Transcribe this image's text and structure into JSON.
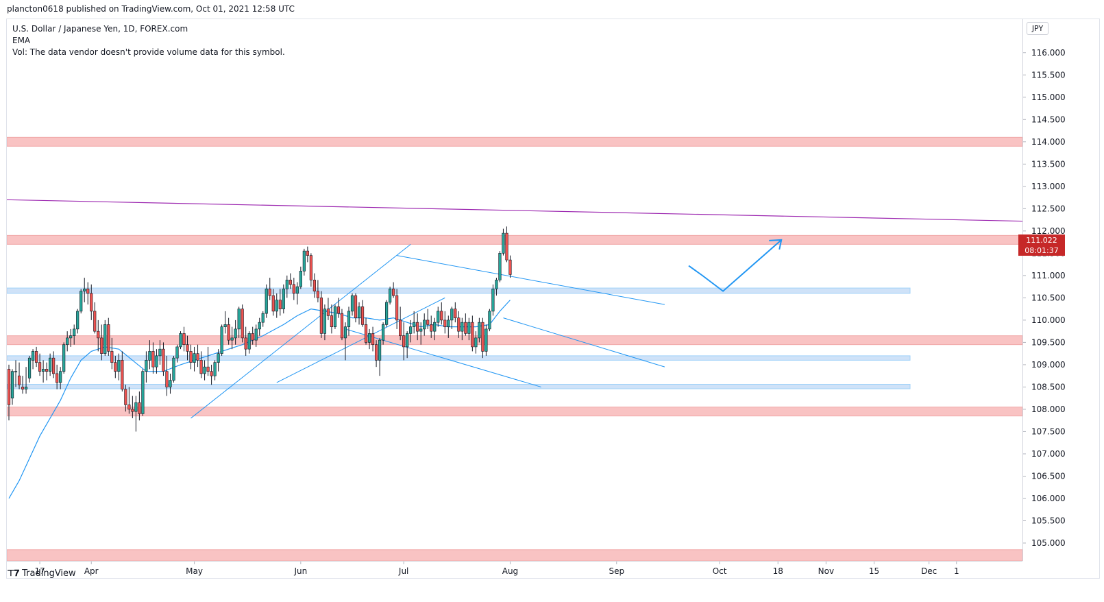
{
  "header": {
    "published": "plancton0618 published on TradingView.com, Oct 01, 2021 12:58 UTC"
  },
  "legend": {
    "symbol": "U.S. Dollar / Japanese Yen, 1D, FOREX.com",
    "indicator": "EMA",
    "volume_note": "Vol: The data vendor doesn't provide volume data for this symbol."
  },
  "currency_badge": "JPY",
  "last_price": {
    "value": "111.022",
    "countdown": "08:01:37"
  },
  "footer": {
    "brand": "TradingView"
  },
  "colors": {
    "up": "#26a69a",
    "down": "#ef5350",
    "ema": "#2196f3",
    "trend": "#2196f3",
    "resistance": "#9c27b0",
    "red_zone": "#f8b9b9",
    "blue_zone": "#c7ddf7"
  },
  "chart_data": {
    "type": "candlestick",
    "symbol": "USDJPY",
    "timeframe": "1D",
    "ylim": [
      104.6,
      116.75
    ],
    "price_ticks": [
      "116.000",
      "115.500",
      "115.000",
      "114.500",
      "114.000",
      "113.500",
      "113.000",
      "112.500",
      "112.000",
      "111.500",
      "111.000",
      "110.500",
      "110.000",
      "109.500",
      "109.000",
      "108.500",
      "108.000",
      "107.500",
      "107.000",
      "106.500",
      "106.000",
      "105.500",
      "105.000"
    ],
    "time_labels": [
      {
        "label": "17",
        "day": 9
      },
      {
        "label": "Apr",
        "day": 24
      },
      {
        "label": "May",
        "day": 54
      },
      {
        "label": "Jun",
        "day": 85
      },
      {
        "label": "Jul",
        "day": 115
      },
      {
        "label": "Aug",
        "day": 146
      },
      {
        "label": "Sep",
        "day": 177
      },
      {
        "label": "Oct",
        "day": 207
      },
      {
        "label": "18",
        "day": 224
      },
      {
        "label": "Nov",
        "day": 238
      },
      {
        "label": "15",
        "day": 252
      },
      {
        "label": "Dec",
        "day": 268
      },
      {
        "label": "1",
        "day": 276
      }
    ],
    "ohlc_daily": [
      [
        108.9,
        109.0,
        107.75,
        108.1
      ],
      [
        108.25,
        108.9,
        108.1,
        108.85
      ],
      [
        108.85,
        109.1,
        108.5,
        108.85
      ],
      [
        108.75,
        109.05,
        108.45,
        108.55
      ],
      [
        108.5,
        108.75,
        108.35,
        108.45
      ],
      [
        108.45,
        108.95,
        108.35,
        108.5
      ],
      [
        108.7,
        109.2,
        108.6,
        109.15
      ],
      [
        109.1,
        109.35,
        108.9,
        109.3
      ],
      [
        109.3,
        109.4,
        108.95,
        109.05
      ],
      [
        109.05,
        109.25,
        108.75,
        108.85
      ],
      [
        108.85,
        109.1,
        108.6,
        108.9
      ],
      [
        108.9,
        109.05,
        108.65,
        108.85
      ],
      [
        108.85,
        109.25,
        108.75,
        109.15
      ],
      [
        109.15,
        109.3,
        108.7,
        108.8
      ],
      [
        108.8,
        109.0,
        108.45,
        108.6
      ],
      [
        108.6,
        108.95,
        108.45,
        108.85
      ],
      [
        108.85,
        109.5,
        108.8,
        109.45
      ],
      [
        109.45,
        109.75,
        109.3,
        109.6
      ],
      [
        109.6,
        109.8,
        109.4,
        109.65
      ],
      [
        109.65,
        109.9,
        109.45,
        109.8
      ],
      [
        109.8,
        110.25,
        109.7,
        110.2
      ],
      [
        110.2,
        110.7,
        110.15,
        110.65
      ],
      [
        110.65,
        110.95,
        110.4,
        110.7
      ],
      [
        110.7,
        110.85,
        110.35,
        110.6
      ],
      [
        110.6,
        110.8,
        110.0,
        110.2
      ],
      [
        110.2,
        110.4,
        109.7,
        109.75
      ],
      [
        109.75,
        110.0,
        109.3,
        109.6
      ],
      [
        109.6,
        109.9,
        109.1,
        109.25
      ],
      [
        109.25,
        110.0,
        109.2,
        109.9
      ],
      [
        109.9,
        110.05,
        109.2,
        109.3
      ],
      [
        109.3,
        109.6,
        108.9,
        109.05
      ],
      [
        109.05,
        109.2,
        108.7,
        108.85
      ],
      [
        108.85,
        109.25,
        108.65,
        109.1
      ],
      [
        109.1,
        109.3,
        108.4,
        108.45
      ],
      [
        108.45,
        108.55,
        107.95,
        108.1
      ],
      [
        108.1,
        108.5,
        107.9,
        108.0
      ],
      [
        108.0,
        108.3,
        107.8,
        107.95
      ],
      [
        107.95,
        108.3,
        107.5,
        108.15
      ],
      [
        108.15,
        108.4,
        107.75,
        107.9
      ],
      [
        107.9,
        108.9,
        107.85,
        108.85
      ],
      [
        108.85,
        109.3,
        108.6,
        109.1
      ],
      [
        109.1,
        109.55,
        108.9,
        109.3
      ],
      [
        109.3,
        109.5,
        108.8,
        108.95
      ],
      [
        108.95,
        109.35,
        108.8,
        109.2
      ],
      [
        109.2,
        109.55,
        109.0,
        109.35
      ],
      [
        109.35,
        109.5,
        108.75,
        108.85
      ],
      [
        108.85,
        109.2,
        108.3,
        108.5
      ],
      [
        108.5,
        108.8,
        108.35,
        108.65
      ],
      [
        108.65,
        109.2,
        108.6,
        109.15
      ],
      [
        109.15,
        109.45,
        109.05,
        109.4
      ],
      [
        109.4,
        109.75,
        109.35,
        109.7
      ],
      [
        109.7,
        109.85,
        109.3,
        109.45
      ],
      [
        109.45,
        109.65,
        109.1,
        109.3
      ],
      [
        109.3,
        109.45,
        108.9,
        109.05
      ],
      [
        109.05,
        109.4,
        108.85,
        109.25
      ],
      [
        109.25,
        109.45,
        108.95,
        109.1
      ],
      [
        109.1,
        109.3,
        108.7,
        108.8
      ],
      [
        108.8,
        109.1,
        108.65,
        108.95
      ],
      [
        108.95,
        109.4,
        108.75,
        108.85
      ],
      [
        108.85,
        109.0,
        108.55,
        108.75
      ],
      [
        108.75,
        109.1,
        108.65,
        109.05
      ],
      [
        109.05,
        109.35,
        108.85,
        109.25
      ],
      [
        109.25,
        109.9,
        109.2,
        109.85
      ],
      [
        109.85,
        110.2,
        109.7,
        109.9
      ],
      [
        109.9,
        110.05,
        109.45,
        109.55
      ],
      [
        109.55,
        109.85,
        109.35,
        109.6
      ],
      [
        109.6,
        110.0,
        109.45,
        109.8
      ],
      [
        109.8,
        110.3,
        109.6,
        110.25
      ],
      [
        110.25,
        110.35,
        109.5,
        109.6
      ],
      [
        109.6,
        109.85,
        109.2,
        109.35
      ],
      [
        109.35,
        109.75,
        109.25,
        109.7
      ],
      [
        109.7,
        109.85,
        109.45,
        109.55
      ],
      [
        109.55,
        109.9,
        109.4,
        109.8
      ],
      [
        109.8,
        110.05,
        109.65,
        109.95
      ],
      [
        109.95,
        110.2,
        109.85,
        110.15
      ],
      [
        110.15,
        110.8,
        110.05,
        110.7
      ],
      [
        110.7,
        110.95,
        110.45,
        110.55
      ],
      [
        110.55,
        110.7,
        110.1,
        110.2
      ],
      [
        110.2,
        110.6,
        110.05,
        110.45
      ],
      [
        110.45,
        110.7,
        110.1,
        110.25
      ],
      [
        110.25,
        110.8,
        110.15,
        110.7
      ],
      [
        110.7,
        111.0,
        110.5,
        110.9
      ],
      [
        110.9,
        111.05,
        110.7,
        110.8
      ],
      [
        110.8,
        110.95,
        110.45,
        110.6
      ],
      [
        110.6,
        110.85,
        110.35,
        110.75
      ],
      [
        110.75,
        111.2,
        110.7,
        111.1
      ],
      [
        111.1,
        111.6,
        111.0,
        111.55
      ],
      [
        111.55,
        111.65,
        111.3,
        111.45
      ],
      [
        111.45,
        111.5,
        110.75,
        110.9
      ],
      [
        110.9,
        111.05,
        110.5,
        110.65
      ],
      [
        110.65,
        110.9,
        110.4,
        110.5
      ],
      [
        110.5,
        110.65,
        109.6,
        109.7
      ],
      [
        109.7,
        110.35,
        109.55,
        110.25
      ],
      [
        110.25,
        110.5,
        110.0,
        110.1
      ],
      [
        110.1,
        110.35,
        109.7,
        109.85
      ],
      [
        109.85,
        110.35,
        109.8,
        110.3
      ],
      [
        110.3,
        110.5,
        110.05,
        110.15
      ],
      [
        110.15,
        110.25,
        109.55,
        109.6
      ],
      [
        109.6,
        109.95,
        109.1,
        109.85
      ],
      [
        109.85,
        110.3,
        109.65,
        110.2
      ],
      [
        110.2,
        110.6,
        110.1,
        110.55
      ],
      [
        110.55,
        110.6,
        109.95,
        110.05
      ],
      [
        110.05,
        110.4,
        109.9,
        110.3
      ],
      [
        110.3,
        110.45,
        109.85,
        109.9
      ],
      [
        109.9,
        110.05,
        109.45,
        109.5
      ],
      [
        109.5,
        109.8,
        109.35,
        109.7
      ],
      [
        109.7,
        109.85,
        109.3,
        109.45
      ],
      [
        109.45,
        109.55,
        108.95,
        109.1
      ],
      [
        109.1,
        109.6,
        108.75,
        109.55
      ],
      [
        109.55,
        109.95,
        109.45,
        109.9
      ],
      [
        109.9,
        110.45,
        109.85,
        110.4
      ],
      [
        110.4,
        110.75,
        110.35,
        110.7
      ],
      [
        110.7,
        110.85,
        110.5,
        110.55
      ],
      [
        110.55,
        110.7,
        109.8,
        110.0
      ],
      [
        110.0,
        110.3,
        109.55,
        109.65
      ],
      [
        109.65,
        109.95,
        109.1,
        109.4
      ],
      [
        109.4,
        109.75,
        109.15,
        109.7
      ],
      [
        109.7,
        110.0,
        109.5,
        109.85
      ],
      [
        109.85,
        110.2,
        109.7,
        109.95
      ],
      [
        109.95,
        110.15,
        109.55,
        109.75
      ],
      [
        109.75,
        109.95,
        109.45,
        109.8
      ],
      [
        109.8,
        110.15,
        109.65,
        110.0
      ],
      [
        110.0,
        110.25,
        109.8,
        109.9
      ],
      [
        109.9,
        110.1,
        109.6,
        109.75
      ],
      [
        109.75,
        110.05,
        109.55,
        109.95
      ],
      [
        109.95,
        110.3,
        109.85,
        110.2
      ],
      [
        110.2,
        110.4,
        109.9,
        110.0
      ],
      [
        110.0,
        110.2,
        109.7,
        109.85
      ],
      [
        109.85,
        110.1,
        109.6,
        110.0
      ],
      [
        110.0,
        110.3,
        109.8,
        110.25
      ],
      [
        110.25,
        110.4,
        109.95,
        110.05
      ],
      [
        110.05,
        110.2,
        109.6,
        109.75
      ],
      [
        109.75,
        110.05,
        109.55,
        109.95
      ],
      [
        109.95,
        110.15,
        109.65,
        109.7
      ],
      [
        109.7,
        110.05,
        109.55,
        109.95
      ],
      [
        109.95,
        110.1,
        109.3,
        109.4
      ],
      [
        109.4,
        109.75,
        109.25,
        109.6
      ],
      [
        109.6,
        110.05,
        109.5,
        109.95
      ],
      [
        109.95,
        110.05,
        109.15,
        109.3
      ],
      [
        109.3,
        109.9,
        109.2,
        109.8
      ],
      [
        109.8,
        110.25,
        109.75,
        110.2
      ],
      [
        110.2,
        110.8,
        110.1,
        110.7
      ],
      [
        110.7,
        110.95,
        110.55,
        110.9
      ],
      [
        110.9,
        111.55,
        110.85,
        111.5
      ],
      [
        111.5,
        112.05,
        111.45,
        111.95
      ],
      [
        111.95,
        112.1,
        111.3,
        111.35
      ],
      [
        111.35,
        111.45,
        110.95,
        111.022
      ]
    ],
    "ema": [
      [
        0,
        106.0
      ],
      [
        3,
        106.4
      ],
      [
        6,
        106.9
      ],
      [
        9,
        107.4
      ],
      [
        12,
        107.8
      ],
      [
        15,
        108.2
      ],
      [
        18,
        108.7
      ],
      [
        21,
        109.1
      ],
      [
        24,
        109.3
      ],
      [
        28,
        109.4
      ],
      [
        32,
        109.35
      ],
      [
        36,
        109.1
      ],
      [
        40,
        108.85
      ],
      [
        45,
        108.85
      ],
      [
        50,
        109.0
      ],
      [
        56,
        109.15
      ],
      [
        62,
        109.3
      ],
      [
        68,
        109.45
      ],
      [
        74,
        109.65
      ],
      [
        80,
        109.9
      ],
      [
        84,
        110.1
      ],
      [
        88,
        110.25
      ],
      [
        92,
        110.2
      ],
      [
        96,
        110.15
      ],
      [
        100,
        110.05
      ],
      [
        104,
        110.05
      ],
      [
        108,
        110.0
      ],
      [
        112,
        110.05
      ],
      [
        116,
        109.95
      ],
      [
        120,
        109.85
      ],
      [
        124,
        109.9
      ],
      [
        128,
        109.85
      ],
      [
        132,
        109.85
      ],
      [
        136,
        109.85
      ],
      [
        140,
        109.9
      ],
      [
        143,
        110.2
      ],
      [
        146,
        110.45
      ]
    ],
    "zones": [
      {
        "type": "supply",
        "from": 113.9,
        "to": 114.1
      },
      {
        "type": "supply",
        "from": 111.7,
        "to": 111.9
      },
      {
        "type": "supply",
        "from": 109.45,
        "to": 109.65
      },
      {
        "type": "supply",
        "from": 107.85,
        "to": 108.05
      },
      {
        "type": "supply",
        "from": 104.6,
        "to": 104.85
      },
      {
        "type": "demand",
        "from": 110.6,
        "to": 110.72
      },
      {
        "type": "demand",
        "from": 109.1,
        "to": 109.2
      },
      {
        "type": "demand",
        "from": 108.46,
        "to": 108.56
      }
    ]
  }
}
